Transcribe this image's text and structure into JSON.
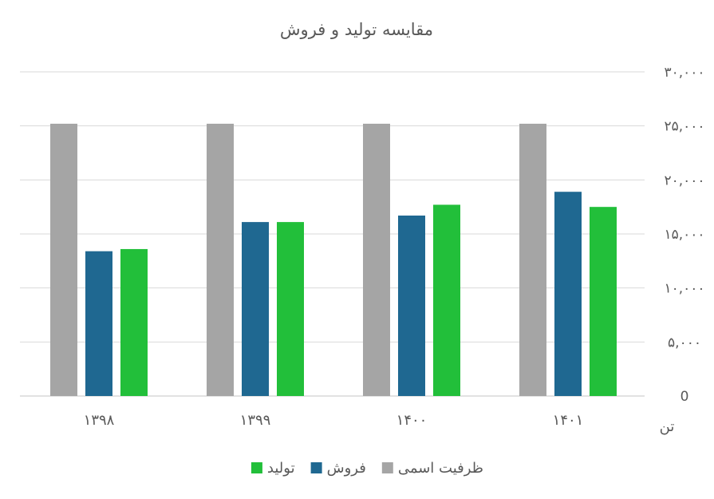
{
  "chart_data": {
    "type": "bar",
    "title": "مقایسه تولید و فروش",
    "ylabel": "تن",
    "xlabel": "",
    "ylim": [
      0,
      30000
    ],
    "y_ticks": [
      0,
      5000,
      10000,
      15000,
      20000,
      25000,
      30000
    ],
    "y_tick_labels": [
      "0",
      "۵,۰۰۰",
      "۱۰,۰۰۰",
      "۱۵,۰۰۰",
      "۲۰,۰۰۰",
      "۲۵,۰۰۰",
      "۳۰,۰۰۰"
    ],
    "categories": [
      "۱۳۹۸",
      "۱۳۹۹",
      "۱۴۰۰",
      "۱۴۰۱"
    ],
    "series": [
      {
        "name": "ظرفیت اسمی",
        "color": "#a5a5a5",
        "values": [
          25200,
          25200,
          25200,
          25200
        ]
      },
      {
        "name": "فروش",
        "color": "#1f6891",
        "values": [
          13400,
          16100,
          16700,
          18900
        ]
      },
      {
        "name": "تولید",
        "color": "#22bf3a",
        "values": [
          13600,
          16100,
          17700,
          17500
        ]
      }
    ],
    "grid": true,
    "legend_position": "bottom",
    "y_axis_side": "right"
  }
}
